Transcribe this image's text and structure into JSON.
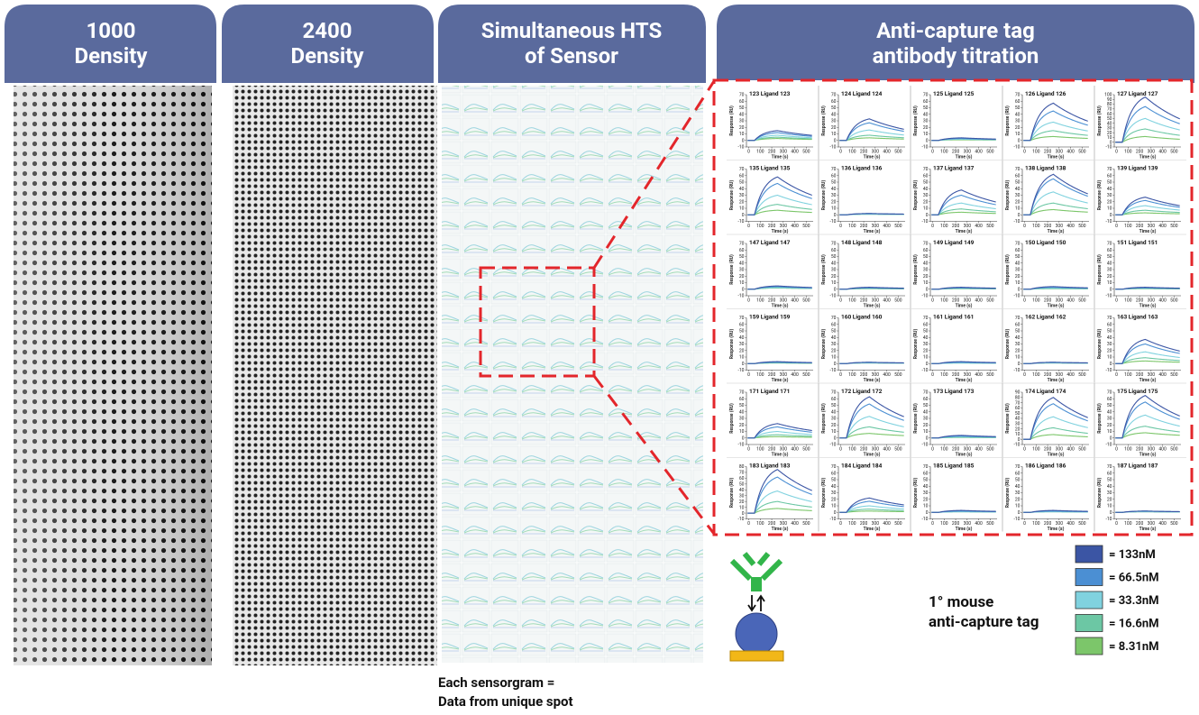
{
  "headers": [
    {
      "lines": [
        "1000",
        "Density"
      ]
    },
    {
      "lines": [
        "2400",
        "Density"
      ]
    },
    {
      "lines": [
        "Simultaneous HTS",
        "of Sensor"
      ]
    },
    {
      "lines": [
        "Anti-capture tag",
        "antibody titration"
      ]
    }
  ],
  "caption": {
    "lines": [
      "Each sensorgram =",
      "Data from unique spot"
    ]
  },
  "antibody_label": {
    "lines": [
      "1° mouse",
      "anti-capture tag"
    ]
  },
  "legend": [
    {
      "label": "= 133nM",
      "color": "#3b55a4"
    },
    {
      "label": "= 66.5nM",
      "color": "#4b8fd3"
    },
    {
      "label": "= 33.3nM",
      "color": "#80d2df"
    },
    {
      "label": "= 16.6nM",
      "color": "#6cc7a4"
    },
    {
      "label": "= 8.31nM",
      "color": "#7cc66a"
    }
  ],
  "sensorgrams": {
    "type": "line",
    "x_label": "Time (s)",
    "y_label": "Response (RU)",
    "xlim": [
      -20,
      560
    ],
    "xticks": [
      0,
      100,
      200,
      300,
      400,
      500
    ],
    "ylim": [
      -10,
      70
    ],
    "yticks": [
      -10,
      0,
      10,
      20,
      30,
      40,
      50,
      60,
      70
    ],
    "panels": [
      {
        "title": "123 Ligand 123",
        "peaks": [
          15,
          12,
          8,
          5,
          3
        ]
      },
      {
        "title": "124 Ligand 124",
        "peaks": [
          33,
          27,
          16,
          8,
          4
        ]
      },
      {
        "title": "125 Ligand 125",
        "peaks": [
          4,
          3,
          2,
          2,
          1
        ]
      },
      {
        "title": "126 Ligand 126",
        "peaks": [
          57,
          45,
          28,
          15,
          6
        ]
      },
      {
        "title": "127 Ligand 127",
        "peaks": [
          95,
          75,
          50,
          28,
          12
        ],
        "ylim": [
          -10,
          100
        ],
        "yticks": [
          -10,
          0,
          10,
          20,
          30,
          40,
          50,
          60,
          70,
          80,
          90,
          100
        ]
      },
      {
        "title": "135 Ligand 135",
        "peaks": [
          58,
          48,
          30,
          16,
          7
        ]
      },
      {
        "title": "136 Ligand 136",
        "peaks": [
          2,
          2,
          1,
          1,
          1
        ]
      },
      {
        "title": "137 Ligand 137",
        "peaks": [
          38,
          30,
          18,
          9,
          4
        ]
      },
      {
        "title": "138 Ligand 138",
        "peaks": [
          62,
          55,
          35,
          18,
          8
        ]
      },
      {
        "title": "139 Ligand 139",
        "peaks": [
          27,
          22,
          14,
          7,
          3
        ]
      },
      {
        "title": "147 Ligand 147",
        "peaks": [
          5,
          4,
          3,
          2,
          2
        ]
      },
      {
        "title": "148 Ligand 148",
        "peaks": [
          3,
          2,
          2,
          1,
          1
        ]
      },
      {
        "title": "149 Ligand 149",
        "peaks": [
          3,
          2,
          2,
          1,
          1
        ]
      },
      {
        "title": "150 Ligand 150",
        "peaks": [
          4,
          3,
          2,
          1,
          1
        ]
      },
      {
        "title": "151 Ligand 151",
        "peaks": [
          3,
          2,
          2,
          1,
          1
        ]
      },
      {
        "title": "159 Ligand 159",
        "peaks": [
          3,
          2,
          2,
          1,
          1
        ]
      },
      {
        "title": "160 Ligand 160",
        "peaks": [
          2,
          2,
          1,
          1,
          1
        ]
      },
      {
        "title": "161 Ligand 161",
        "peaks": [
          3,
          2,
          1,
          1,
          1
        ]
      },
      {
        "title": "162 Ligand 162",
        "peaks": [
          2,
          2,
          1,
          1,
          1
        ]
      },
      {
        "title": "163 Ligand 163",
        "peaks": [
          37,
          30,
          18,
          9,
          4
        ]
      },
      {
        "title": "171 Ligand 171",
        "peaks": [
          22,
          17,
          10,
          5,
          2
        ]
      },
      {
        "title": "172 Ligand 172",
        "peaks": [
          63,
          52,
          33,
          17,
          7
        ]
      },
      {
        "title": "173 Ligand 173",
        "peaks": [
          4,
          3,
          2,
          1,
          1
        ]
      },
      {
        "title": "174 Ligand 174",
        "peaks": [
          80,
          68,
          43,
          22,
          9
        ],
        "ylim": [
          -10,
          90
        ],
        "yticks": [
          -10,
          0,
          10,
          20,
          30,
          40,
          50,
          60,
          70,
          80,
          90
        ]
      },
      {
        "title": "175 Ligand 175",
        "peaks": [
          65,
          55,
          35,
          18,
          8
        ]
      },
      {
        "title": "183 Ligand 183",
        "peaks": [
          75,
          62,
          38,
          20,
          8
        ],
        "ylim": [
          -10,
          80
        ],
        "yticks": [
          -10,
          0,
          10,
          20,
          30,
          40,
          50,
          60,
          70,
          80
        ]
      },
      {
        "title": "184 Ligand 184",
        "peaks": [
          22,
          17,
          10,
          5,
          2
        ]
      },
      {
        "title": "185 Ligand 185",
        "peaks": [
          3,
          2,
          1,
          1,
          1
        ]
      },
      {
        "title": "186 Ligand 186",
        "peaks": [
          3,
          2,
          1,
          1,
          1
        ]
      },
      {
        "title": "187 Ligand 187",
        "peaks": [
          2,
          2,
          1,
          1,
          1
        ]
      }
    ]
  }
}
